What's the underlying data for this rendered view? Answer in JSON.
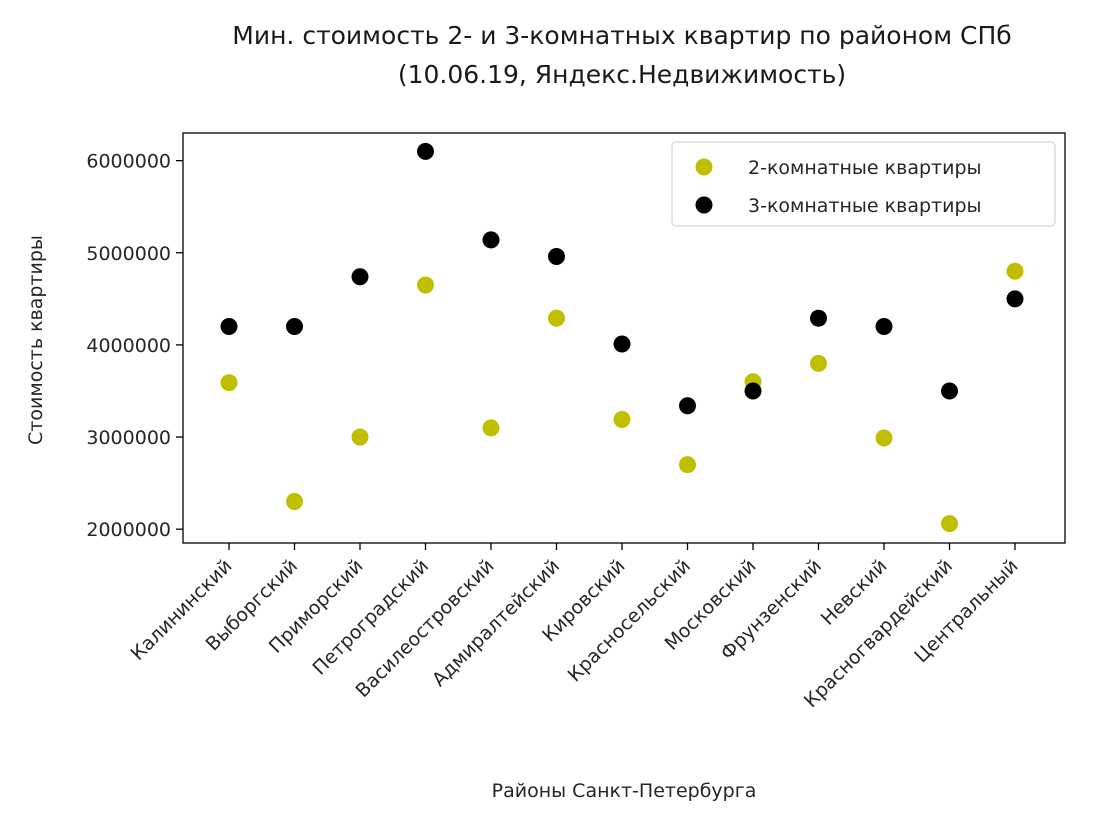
{
  "chart_data": {
    "type": "scatter",
    "title": "Мин. стоимость 2- и 3-комнатных квартир по районом СПб",
    "subtitle": "(10.06.19, Яндекс.Недвижимость)",
    "xlabel": "Районы Санкт-Петербурга",
    "ylabel": "Стоимость квартиры",
    "categories": [
      "Калининский",
      "Выборгский",
      "Приморский",
      "Петроградский",
      "Василеостровский",
      "Адмиралтейский",
      "Кировский",
      "Красносельский",
      "Московский",
      "Фрунзенский",
      "Невский",
      "Красногвардейский",
      "Центральный"
    ],
    "ylim": [
      1850000,
      6300000
    ],
    "yticks": [
      2000000,
      3000000,
      4000000,
      5000000,
      6000000
    ],
    "grid": false,
    "legend_position": "top-right",
    "series": [
      {
        "name": "2-комнатные квартиры",
        "color": "#bfbf00",
        "values": [
          3590000,
          2300000,
          3000000,
          4650000,
          3100000,
          4290000,
          3190000,
          2700000,
          3600000,
          3800000,
          2990000,
          2060000,
          4800000
        ]
      },
      {
        "name": "3-комнатные квартиры",
        "color": "#000000",
        "values": [
          4200000,
          4200000,
          4740000,
          6100000,
          5140000,
          4960000,
          4010000,
          3340000,
          3500000,
          4290000,
          4200000,
          3500000,
          4500000
        ]
      }
    ]
  }
}
